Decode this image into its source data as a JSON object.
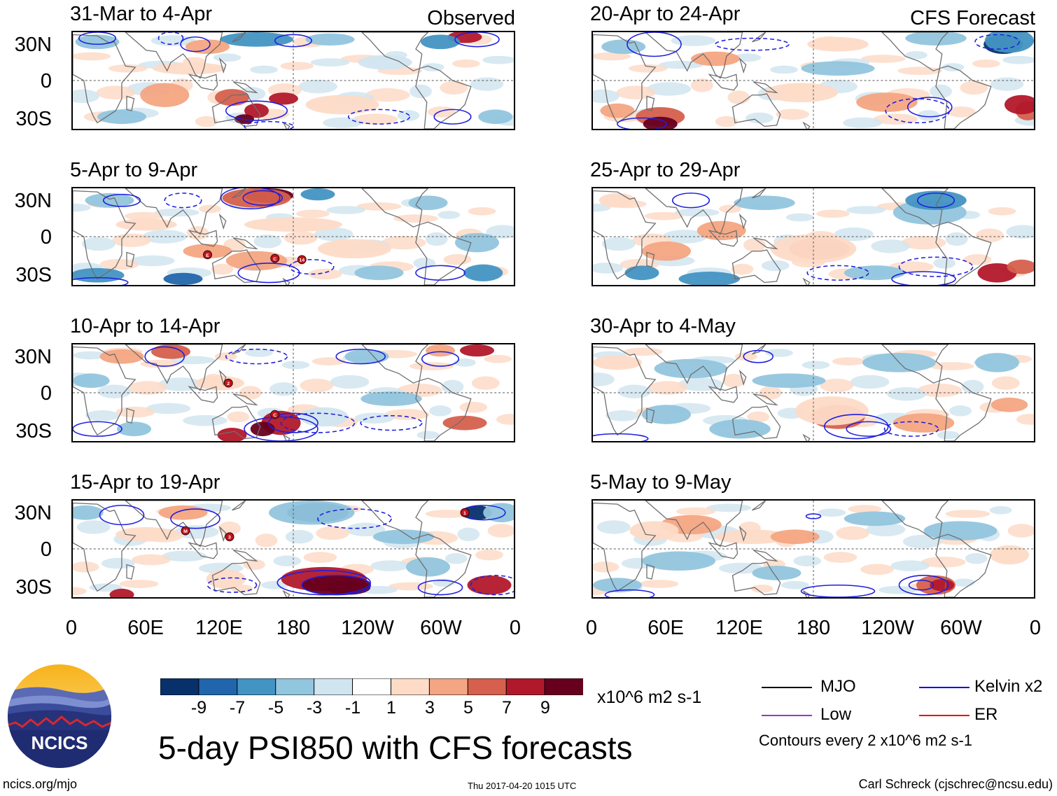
{
  "chart_data": {
    "type": "heatmap",
    "title": "5-day PSI850 with CFS forecasts",
    "variable": "PSI850",
    "units": "x10^6 m2 s-1",
    "observed_label": "Observed",
    "forecast_label": "CFS Forecast",
    "lat_ticks": [
      "30N",
      "0",
      "30S"
    ],
    "lon_ticks": [
      "0",
      "60E",
      "120E",
      "180",
      "120W",
      "60W",
      "0"
    ],
    "lat_range": [
      -40,
      40
    ],
    "lon_range": [
      0,
      360
    ],
    "colorbar": {
      "colors": [
        "#08306b",
        "#2166ac",
        "#4393c3",
        "#92c5de",
        "#d1e5f0",
        "#ffffff",
        "#fddbc7",
        "#f4a582",
        "#d6604d",
        "#b2182b",
        "#67001f"
      ],
      "tick_labels": [
        "-9",
        "-7",
        "-5",
        "-3",
        "-1",
        "1",
        "3",
        "5",
        "7",
        "9"
      ]
    },
    "observed_panels": [
      {
        "title": "31-Mar to 4-Apr",
        "storms": []
      },
      {
        "title": "5-Apr to 9-Apr",
        "storms": [
          "E",
          "C",
          "14"
        ]
      },
      {
        "title": "10-Apr to 14-Apr",
        "storms": [
          "2",
          "C"
        ]
      },
      {
        "title": "15-Apr to 19-Apr",
        "storms": [
          "M",
          "3",
          "1"
        ]
      }
    ],
    "forecast_panels": [
      {
        "title": "20-Apr to 24-Apr"
      },
      {
        "title": "25-Apr to 29-Apr"
      },
      {
        "title": "30-Apr to 4-May"
      },
      {
        "title": "5-May to 9-May"
      }
    ],
    "legend": {
      "items": [
        {
          "label": "MJO",
          "color": "#000000"
        },
        {
          "label": "Kelvin x2",
          "color": "#0000ee"
        },
        {
          "label": "Low",
          "color": "#9933cc"
        },
        {
          "label": "ER",
          "color": "#ee0000"
        }
      ],
      "contour_note": "Contours every 2 x10^6 m2 s-1"
    }
  },
  "branding": {
    "logo_text": "NCICS",
    "site": "ncics.org/mjo",
    "timestamp": "Thu 2017-04-20 1015 UTC",
    "author": "Carl Schreck (cjschrec@ncsu.edu)"
  }
}
